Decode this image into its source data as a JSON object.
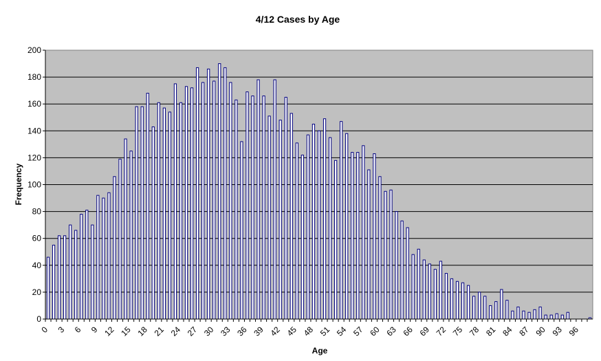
{
  "chart_data": {
    "type": "bar",
    "title": "4/12 Cases by Age",
    "xlabel": "Age",
    "ylabel": "Frequency",
    "ylim": [
      0,
      200
    ],
    "yticks": [
      0,
      20,
      40,
      60,
      80,
      100,
      120,
      140,
      160,
      180,
      200
    ],
    "grid": true,
    "legend": "none",
    "colors": {
      "plot_bg": "#c0c0c0",
      "bar_fill": "#ffffff",
      "bar_stroke": "#000080",
      "grid": "#000000"
    },
    "xtick_labels": [
      "0",
      "3",
      "6",
      "9",
      "12",
      "15",
      "18",
      "21",
      "24",
      "27",
      "30",
      "33",
      "36",
      "39",
      "42",
      "45",
      "48",
      "51",
      "54",
      "57",
      "60",
      "63",
      "66",
      "69",
      "72",
      "75",
      "78",
      "81",
      "84",
      "87",
      "90",
      "93",
      "96"
    ],
    "categories": [
      0,
      1,
      2,
      3,
      4,
      5,
      6,
      7,
      8,
      9,
      10,
      11,
      12,
      13,
      14,
      15,
      16,
      17,
      18,
      19,
      20,
      21,
      22,
      23,
      24,
      25,
      26,
      27,
      28,
      29,
      30,
      31,
      32,
      33,
      34,
      35,
      36,
      37,
      38,
      39,
      40,
      41,
      42,
      43,
      44,
      45,
      46,
      47,
      48,
      49,
      50,
      51,
      52,
      53,
      54,
      55,
      56,
      57,
      58,
      59,
      60,
      61,
      62,
      63,
      64,
      65,
      66,
      67,
      68,
      69,
      70,
      71,
      72,
      73,
      74,
      75,
      76,
      77,
      78,
      79,
      80,
      81,
      82,
      83,
      84,
      85,
      86,
      87,
      88,
      89,
      90,
      91,
      92,
      93,
      94,
      95,
      96,
      97,
      98
    ],
    "values": [
      46,
      55,
      62,
      62,
      70,
      66,
      78,
      81,
      70,
      92,
      90,
      94,
      106,
      119,
      134,
      125,
      158,
      158,
      168,
      143,
      161,
      157,
      154,
      175,
      161,
      173,
      172,
      187,
      176,
      186,
      177,
      190,
      187,
      176,
      163,
      132,
      169,
      166,
      178,
      166,
      151,
      178,
      148,
      165,
      153,
      131,
      122,
      137,
      145,
      140,
      149,
      135,
      118,
      147,
      138,
      124,
      124,
      129,
      111,
      123,
      106,
      95,
      96,
      80,
      73,
      68,
      48,
      52,
      44,
      41,
      37,
      43,
      34,
      30,
      28,
      27,
      25,
      17,
      20,
      17,
      10,
      13,
      22,
      14,
      6,
      9,
      6,
      5,
      7,
      9,
      3,
      3,
      4,
      3,
      5,
      0,
      0,
      0,
      1
    ]
  }
}
